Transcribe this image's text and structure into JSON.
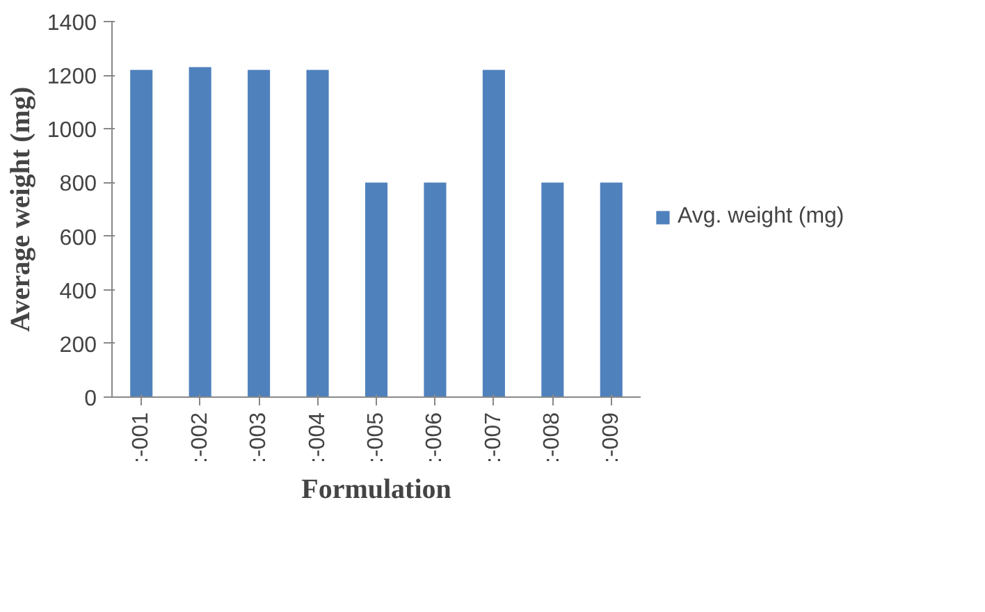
{
  "chart_data": {
    "type": "bar",
    "xlabel": "Formulation",
    "ylabel": "Average weight (mg)",
    "categories": [
      ":-001",
      ":-002",
      ":-003",
      ":-004",
      ":-005",
      ":-006",
      ":-007",
      ":-008",
      ":-009"
    ],
    "series": [
      {
        "name": "Avg. weight (mg)",
        "color": "#4f81bd",
        "values": [
          1220,
          1230,
          1220,
          1220,
          800,
          800,
          1220,
          800,
          800
        ]
      }
    ],
    "ylim": [
      0,
      1400
    ],
    "yticks": [
      0,
      200,
      400,
      600,
      800,
      1000,
      1200,
      1400
    ],
    "grid": false,
    "legend": "right"
  }
}
